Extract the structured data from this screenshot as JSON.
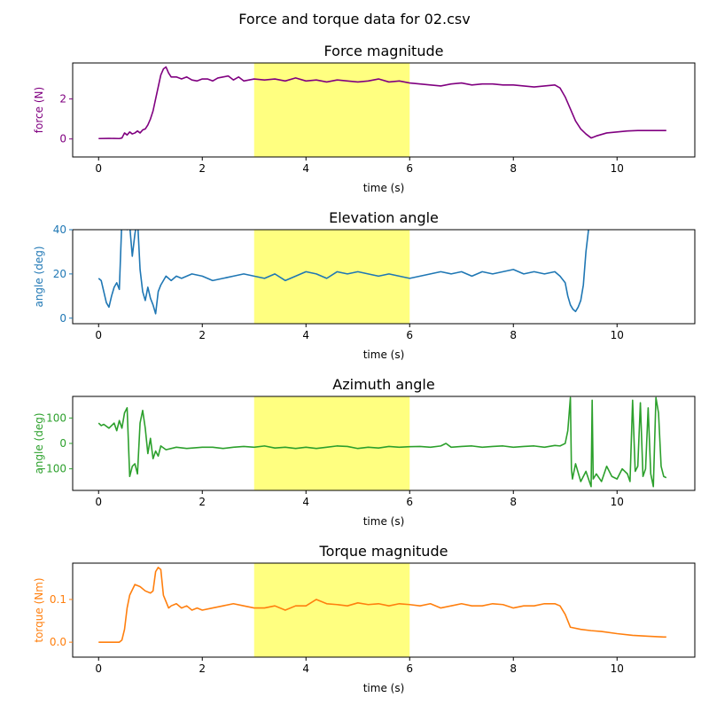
{
  "figure": {
    "suptitle": "Force and torque data for 02.csv"
  },
  "chart_data": [
    {
      "type": "line",
      "title": "Force magnitude",
      "xlabel": "time (s)",
      "ylabel": "force (N)",
      "xlim": [
        -0.5,
        11.5
      ],
      "ylim": [
        -0.9,
        3.8
      ],
      "xticks": [
        0,
        2,
        4,
        6,
        8,
        10
      ],
      "yticks": [
        0,
        2
      ],
      "color": "#800080",
      "highlight": {
        "x0": 3,
        "x1": 6,
        "color": "#ffff80"
      },
      "series": [
        {
          "x": [
            0,
            0.2,
            0.4,
            0.45,
            0.5,
            0.55,
            0.6,
            0.65,
            0.7,
            0.75,
            0.8,
            0.85,
            0.9,
            0.95,
            1.0,
            1.05,
            1.1,
            1.15,
            1.2,
            1.25,
            1.3,
            1.35,
            1.4,
            1.5,
            1.6,
            1.7,
            1.8,
            1.9,
            2.0,
            2.1,
            2.2,
            2.3,
            2.4,
            2.5,
            2.6,
            2.7,
            2.8,
            2.9,
            3.0,
            3.2,
            3.4,
            3.6,
            3.8,
            4.0,
            4.2,
            4.4,
            4.6,
            4.8,
            5.0,
            5.2,
            5.4,
            5.6,
            5.8,
            6.0,
            6.2,
            6.4,
            6.6,
            6.8,
            7.0,
            7.2,
            7.4,
            7.6,
            7.8,
            8.0,
            8.2,
            8.4,
            8.6,
            8.8,
            8.9,
            9.0,
            9.1,
            9.2,
            9.3,
            9.4,
            9.5,
            9.6,
            9.8,
            10.0,
            10.2,
            10.4,
            10.6,
            10.8,
            10.95
          ],
          "y": [
            0.02,
            0.03,
            0.02,
            0.05,
            0.3,
            0.2,
            0.35,
            0.25,
            0.3,
            0.4,
            0.3,
            0.45,
            0.5,
            0.7,
            1.0,
            1.4,
            2.0,
            2.6,
            3.2,
            3.5,
            3.6,
            3.3,
            3.1,
            3.1,
            3.0,
            3.1,
            2.95,
            2.9,
            3.0,
            3.0,
            2.9,
            3.05,
            3.1,
            3.15,
            2.95,
            3.1,
            2.9,
            2.95,
            3.0,
            2.95,
            3.0,
            2.9,
            3.05,
            2.9,
            2.95,
            2.85,
            2.95,
            2.9,
            2.85,
            2.9,
            3.0,
            2.85,
            2.9,
            2.8,
            2.75,
            2.7,
            2.65,
            2.75,
            2.8,
            2.7,
            2.75,
            2.75,
            2.7,
            2.7,
            2.65,
            2.6,
            2.65,
            2.7,
            2.55,
            2.1,
            1.5,
            0.9,
            0.5,
            0.25,
            0.05,
            0.15,
            0.3,
            0.35,
            0.4,
            0.42,
            0.42,
            0.42,
            0.42
          ]
        }
      ]
    },
    {
      "type": "line",
      "title": "Elevation angle",
      "xlabel": "time (s)",
      "ylabel": "angle (deg)",
      "xlim": [
        -0.5,
        11.5
      ],
      "ylim": [
        -2.5,
        40
      ],
      "xticks": [
        0,
        2,
        4,
        6,
        8,
        10
      ],
      "yticks": [
        0,
        20,
        40
      ],
      "color": "#1f77b4",
      "highlight": {
        "x0": 3,
        "x1": 6,
        "color": "#ffff80"
      },
      "series": [
        {
          "x": [
            0,
            0.05,
            0.1,
            0.15,
            0.2,
            0.25,
            0.3,
            0.35,
            0.4,
            0.45,
            0.5,
            0.55,
            0.6,
            0.65,
            0.7,
            0.75,
            0.8,
            0.85,
            0.9,
            0.95,
            1.0,
            1.05,
            1.1,
            1.15,
            1.2,
            1.3,
            1.4,
            1.5,
            1.6,
            1.8,
            2.0,
            2.2,
            2.4,
            2.6,
            2.8,
            3.0,
            3.2,
            3.4,
            3.6,
            3.8,
            4.0,
            4.2,
            4.4,
            4.6,
            4.8,
            5.0,
            5.2,
            5.4,
            5.6,
            5.8,
            6.0,
            6.2,
            6.4,
            6.6,
            6.8,
            7.0,
            7.2,
            7.4,
            7.6,
            7.8,
            8.0,
            8.2,
            8.4,
            8.6,
            8.8,
            8.9,
            9.0,
            9.05,
            9.1,
            9.15,
            9.2,
            9.25,
            9.3,
            9.35,
            9.4,
            9.45
          ],
          "y": [
            18,
            17,
            12,
            7,
            5,
            10,
            14,
            16,
            13,
            45,
            45,
            40,
            42,
            28,
            38,
            45,
            22,
            12,
            8,
            14,
            9,
            6,
            2,
            12,
            15,
            19,
            17,
            19,
            18,
            20,
            19,
            17,
            18,
            19,
            20,
            19,
            18,
            20,
            17,
            19,
            21,
            20,
            18,
            21,
            20,
            21,
            20,
            19,
            20,
            19,
            18,
            19,
            20,
            21,
            20,
            21,
            19,
            21,
            20,
            21,
            22,
            20,
            21,
            20,
            21,
            19,
            16,
            10,
            6,
            4,
            3,
            5,
            8,
            15,
            30,
            40
          ]
        }
      ]
    },
    {
      "type": "line",
      "title": "Azimuth angle",
      "xlabel": "time (s)",
      "ylabel": "angle (deg)",
      "xlim": [
        -0.5,
        11.5
      ],
      "ylim": [
        -185,
        185
      ],
      "xticks": [
        0,
        2,
        4,
        6,
        8,
        10
      ],
      "yticks": [
        100,
        0,
        -100
      ],
      "ytick_labels": [
        "100",
        "0",
        "−100"
      ],
      "color": "#2ca02c",
      "highlight": {
        "x0": 3,
        "x1": 6,
        "color": "#ffff80"
      },
      "series": [
        {
          "x": [
            0,
            0.05,
            0.1,
            0.2,
            0.3,
            0.35,
            0.4,
            0.45,
            0.5,
            0.55,
            0.6,
            0.65,
            0.7,
            0.75,
            0.8,
            0.85,
            0.9,
            0.95,
            1.0,
            1.05,
            1.1,
            1.15,
            1.2,
            1.3,
            1.5,
            1.7,
            2.0,
            2.2,
            2.4,
            2.6,
            2.8,
            3.0,
            3.2,
            3.4,
            3.6,
            3.8,
            4.0,
            4.2,
            4.4,
            4.6,
            4.8,
            5.0,
            5.2,
            5.4,
            5.6,
            5.8,
            6.0,
            6.2,
            6.4,
            6.6,
            6.7,
            6.8,
            7.0,
            7.2,
            7.4,
            7.6,
            7.8,
            8.0,
            8.2,
            8.4,
            8.6,
            8.8,
            8.9,
            9.0,
            9.05,
            9.1,
            9.12,
            9.14,
            9.2,
            9.3,
            9.4,
            9.5,
            9.52,
            9.54,
            9.6,
            9.7,
            9.8,
            9.9,
            10.0,
            10.1,
            10.2,
            10.25,
            10.3,
            10.35,
            10.4,
            10.45,
            10.5,
            10.55,
            10.6,
            10.65,
            10.7,
            10.75,
            10.8,
            10.85,
            10.9,
            10.95
          ],
          "y": [
            80,
            70,
            75,
            60,
            80,
            50,
            90,
            60,
            120,
            140,
            -130,
            -90,
            -80,
            -120,
            80,
            130,
            60,
            -40,
            20,
            -60,
            -30,
            -50,
            -10,
            -25,
            -15,
            -20,
            -15,
            -15,
            -20,
            -15,
            -12,
            -15,
            -10,
            -18,
            -15,
            -20,
            -15,
            -20,
            -15,
            -10,
            -12,
            -20,
            -15,
            -18,
            -12,
            -15,
            -13,
            -12,
            -15,
            -10,
            0,
            -15,
            -12,
            -10,
            -15,
            -12,
            -10,
            -15,
            -12,
            -10,
            -15,
            -8,
            -10,
            0,
            50,
            180,
            -100,
            -140,
            -80,
            -150,
            -110,
            -170,
            170,
            -140,
            -120,
            -150,
            -90,
            -130,
            -140,
            -100,
            -120,
            -150,
            170,
            -110,
            -90,
            160,
            -130,
            -100,
            140,
            -120,
            -170,
            180,
            120,
            -90,
            -130,
            -135
          ]
        }
      ]
    },
    {
      "type": "line",
      "title": "Torque magnitude",
      "xlabel": "time (s)",
      "ylabel": "torque (Nm)",
      "xlim": [
        -0.5,
        11.5
      ],
      "ylim": [
        -0.035,
        0.185
      ],
      "xticks": [
        0,
        2,
        4,
        6,
        8,
        10
      ],
      "yticks": [
        0.0,
        0.1
      ],
      "ytick_labels": [
        "0.0",
        "0.1"
      ],
      "color": "#ff7f0e",
      "highlight": {
        "x0": 3,
        "x1": 6,
        "color": "#ffff80"
      },
      "series": [
        {
          "x": [
            0,
            0.2,
            0.4,
            0.45,
            0.5,
            0.55,
            0.6,
            0.7,
            0.8,
            0.9,
            1.0,
            1.05,
            1.1,
            1.15,
            1.2,
            1.25,
            1.3,
            1.35,
            1.4,
            1.5,
            1.6,
            1.7,
            1.8,
            1.9,
            2.0,
            2.2,
            2.4,
            2.6,
            2.8,
            3.0,
            3.2,
            3.4,
            3.6,
            3.8,
            4.0,
            4.2,
            4.4,
            4.6,
            4.8,
            5.0,
            5.2,
            5.4,
            5.6,
            5.8,
            6.0,
            6.2,
            6.4,
            6.6,
            6.8,
            7.0,
            7.2,
            7.4,
            7.6,
            7.8,
            8.0,
            8.2,
            8.4,
            8.6,
            8.8,
            8.9,
            9.0,
            9.1,
            9.3,
            9.5,
            9.7,
            10.0,
            10.3,
            10.6,
            10.9,
            10.95
          ],
          "y": [
            0,
            0,
            0,
            0.005,
            0.03,
            0.08,
            0.11,
            0.135,
            0.13,
            0.12,
            0.115,
            0.12,
            0.165,
            0.175,
            0.17,
            0.11,
            0.095,
            0.08,
            0.085,
            0.09,
            0.08,
            0.085,
            0.075,
            0.08,
            0.075,
            0.08,
            0.085,
            0.09,
            0.085,
            0.08,
            0.08,
            0.085,
            0.075,
            0.085,
            0.085,
            0.1,
            0.09,
            0.088,
            0.085,
            0.092,
            0.088,
            0.09,
            0.085,
            0.09,
            0.088,
            0.085,
            0.09,
            0.08,
            0.085,
            0.09,
            0.085,
            0.085,
            0.09,
            0.088,
            0.08,
            0.085,
            0.085,
            0.09,
            0.09,
            0.085,
            0.065,
            0.035,
            0.03,
            0.027,
            0.025,
            0.02,
            0.016,
            0.014,
            0.012,
            0.012
          ]
        }
      ]
    }
  ]
}
